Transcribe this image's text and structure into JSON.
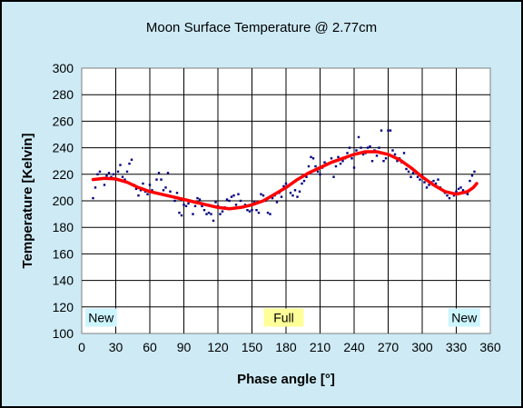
{
  "chart_data": {
    "type": "scatter",
    "title": "Moon Surface Temperature @ 2.77cm",
    "xlabel": "Phase angle [°]",
    "ylabel": "Temperature [Kelvin]",
    "xlim": [
      0,
      360
    ],
    "ylim": [
      100,
      300
    ],
    "xticks": [
      0,
      30,
      60,
      90,
      120,
      150,
      180,
      210,
      240,
      270,
      300,
      330,
      360
    ],
    "yticks": [
      100,
      120,
      140,
      160,
      180,
      200,
      220,
      240,
      260,
      280,
      300
    ],
    "grid": true,
    "colors": {
      "background": "#cdeaf5",
      "plot": "#ffffff",
      "points": "#00007f",
      "fit": "#ff0000"
    },
    "annotations": [
      {
        "text": "New",
        "x": 17,
        "y": 112,
        "color": "#ccf5ff"
      },
      {
        "text": "Full",
        "x": 178,
        "y": 112,
        "color": "#ffff99"
      },
      {
        "text": "New",
        "x": 337,
        "y": 112,
        "color": "#ccf5ff"
      }
    ],
    "points": [
      [
        10,
        202
      ],
      [
        12,
        210
      ],
      [
        14,
        220
      ],
      [
        16,
        222
      ],
      [
        20,
        212
      ],
      [
        22,
        219
      ],
      [
        24,
        221
      ],
      [
        26,
        218
      ],
      [
        28,
        220
      ],
      [
        30,
        216
      ],
      [
        32,
        222
      ],
      [
        34,
        227
      ],
      [
        36,
        218
      ],
      [
        38,
        216
      ],
      [
        40,
        222
      ],
      [
        42,
        228
      ],
      [
        44,
        231
      ],
      [
        46,
        212
      ],
      [
        48,
        209
      ],
      [
        50,
        204
      ],
      [
        52,
        208
      ],
      [
        54,
        213
      ],
      [
        56,
        207
      ],
      [
        58,
        205
      ],
      [
        60,
        212
      ],
      [
        62,
        208
      ],
      [
        64,
        206
      ],
      [
        66,
        216
      ],
      [
        68,
        221
      ],
      [
        70,
        216
      ],
      [
        72,
        208
      ],
      [
        74,
        210
      ],
      [
        76,
        221
      ],
      [
        78,
        207
      ],
      [
        80,
        203
      ],
      [
        82,
        200
      ],
      [
        84,
        206
      ],
      [
        86,
        191
      ],
      [
        88,
        189
      ],
      [
        90,
        197
      ],
      [
        92,
        196
      ],
      [
        94,
        198
      ],
      [
        96,
        200
      ],
      [
        98,
        190
      ],
      [
        100,
        196
      ],
      [
        102,
        202
      ],
      [
        104,
        201
      ],
      [
        106,
        196
      ],
      [
        108,
        193
      ],
      [
        110,
        190
      ],
      [
        112,
        191
      ],
      [
        114,
        190
      ],
      [
        116,
        185
      ],
      [
        118,
        199
      ],
      [
        120,
        196
      ],
      [
        122,
        190
      ],
      [
        124,
        192
      ],
      [
        126,
        195
      ],
      [
        128,
        201
      ],
      [
        130,
        200
      ],
      [
        132,
        203
      ],
      [
        134,
        204
      ],
      [
        136,
        197
      ],
      [
        138,
        205
      ],
      [
        140,
        200
      ],
      [
        142,
        195
      ],
      [
        144,
        197
      ],
      [
        146,
        193
      ],
      [
        148,
        192
      ],
      [
        150,
        193
      ],
      [
        152,
        199
      ],
      [
        154,
        193
      ],
      [
        156,
        191
      ],
      [
        158,
        205
      ],
      [
        160,
        204
      ],
      [
        162,
        200
      ],
      [
        164,
        191
      ],
      [
        166,
        190
      ],
      [
        168,
        202
      ],
      [
        170,
        204
      ],
      [
        172,
        199
      ],
      [
        174,
        206
      ],
      [
        176,
        203
      ],
      [
        178,
        211
      ],
      [
        180,
        213
      ],
      [
        182,
        211
      ],
      [
        184,
        206
      ],
      [
        186,
        204
      ],
      [
        188,
        208
      ],
      [
        190,
        203
      ],
      [
        192,
        207
      ],
      [
        194,
        213
      ],
      [
        196,
        215
      ],
      [
        198,
        218
      ],
      [
        200,
        226
      ],
      [
        202,
        233
      ],
      [
        204,
        232
      ],
      [
        206,
        226
      ],
      [
        208,
        222
      ],
      [
        210,
        220
      ],
      [
        212,
        225
      ],
      [
        214,
        229
      ],
      [
        216,
        228
      ],
      [
        218,
        228
      ],
      [
        220,
        232
      ],
      [
        222,
        218
      ],
      [
        224,
        226
      ],
      [
        226,
        233
      ],
      [
        228,
        228
      ],
      [
        230,
        230
      ],
      [
        232,
        232
      ],
      [
        234,
        236
      ],
      [
        236,
        240
      ],
      [
        238,
        232
      ],
      [
        240,
        225
      ],
      [
        242,
        238
      ],
      [
        244,
        248
      ],
      [
        246,
        240
      ],
      [
        248,
        235
      ],
      [
        250,
        236
      ],
      [
        252,
        240
      ],
      [
        254,
        241
      ],
      [
        256,
        230
      ],
      [
        258,
        238
      ],
      [
        260,
        234
      ],
      [
        262,
        240
      ],
      [
        264,
        253
      ],
      [
        266,
        230
      ],
      [
        268,
        232
      ],
      [
        270,
        253
      ],
      [
        272,
        253
      ],
      [
        274,
        238
      ],
      [
        276,
        235
      ],
      [
        278,
        230
      ],
      [
        280,
        232
      ],
      [
        282,
        229
      ],
      [
        284,
        236
      ],
      [
        286,
        224
      ],
      [
        288,
        222
      ],
      [
        290,
        218
      ],
      [
        292,
        221
      ],
      [
        294,
        222
      ],
      [
        296,
        218
      ],
      [
        298,
        216
      ],
      [
        300,
        219
      ],
      [
        302,
        214
      ],
      [
        304,
        210
      ],
      [
        306,
        212
      ],
      [
        308,
        214
      ],
      [
        310,
        215
      ],
      [
        312,
        213
      ],
      [
        314,
        216
      ],
      [
        316,
        210
      ],
      [
        318,
        208
      ],
      [
        320,
        206
      ],
      [
        322,
        204
      ],
      [
        324,
        202
      ],
      [
        326,
        206
      ],
      [
        328,
        204
      ],
      [
        330,
        207
      ],
      [
        332,
        209
      ],
      [
        334,
        210
      ],
      [
        336,
        208
      ],
      [
        338,
        206
      ],
      [
        340,
        205
      ],
      [
        342,
        215
      ],
      [
        344,
        219
      ],
      [
        346,
        222
      ]
    ],
    "fit": [
      [
        10,
        216
      ],
      [
        20,
        217
      ],
      [
        30,
        216.5
      ],
      [
        40,
        214
      ],
      [
        50,
        210
      ],
      [
        60,
        207
      ],
      [
        70,
        205
      ],
      [
        80,
        203
      ],
      [
        90,
        201
      ],
      [
        100,
        199
      ],
      [
        110,
        197
      ],
      [
        120,
        195
      ],
      [
        130,
        194
      ],
      [
        140,
        195
      ],
      [
        150,
        197
      ],
      [
        160,
        200
      ],
      [
        170,
        205
      ],
      [
        180,
        210
      ],
      [
        190,
        216
      ],
      [
        200,
        221
      ],
      [
        210,
        225
      ],
      [
        220,
        229
      ],
      [
        230,
        232
      ],
      [
        240,
        235
      ],
      [
        250,
        237
      ],
      [
        260,
        237
      ],
      [
        270,
        235
      ],
      [
        280,
        231
      ],
      [
        290,
        225
      ],
      [
        300,
        218
      ],
      [
        310,
        212
      ],
      [
        320,
        207
      ],
      [
        330,
        205
      ],
      [
        340,
        207
      ],
      [
        345,
        210
      ],
      [
        348,
        213
      ]
    ]
  }
}
